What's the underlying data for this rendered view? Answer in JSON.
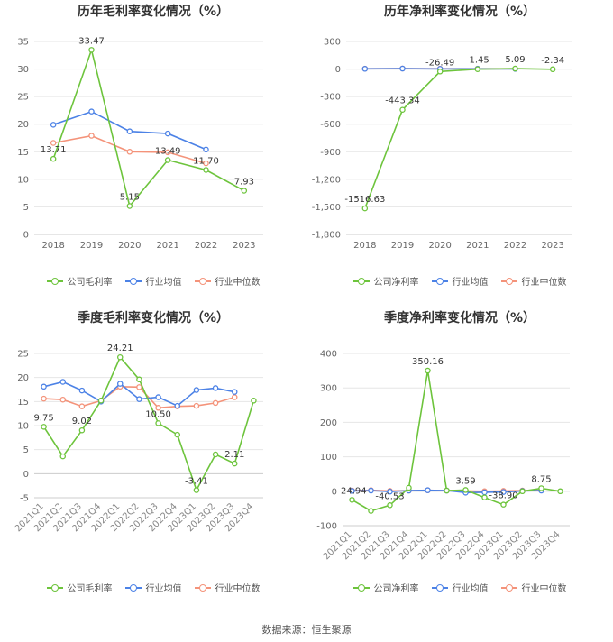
{
  "source": "数据来源：恒生聚源",
  "legend": [
    "公司毛利率",
    "行业均值",
    "行业中位数"
  ],
  "colors": {
    "company": "#6dc43c",
    "avg": "#4c82e6",
    "median": "#f4937a"
  },
  "chart_data": [
    {
      "type": "line",
      "title": "历年毛利率变化情况（%）",
      "categories": [
        "2018",
        "2019",
        "2020",
        "2021",
        "2022",
        "2023"
      ],
      "ylim": [
        0,
        35
      ],
      "yticks": [
        0,
        5,
        10,
        15,
        20,
        25,
        30,
        35
      ],
      "grid": true,
      "legend_position": "bottom",
      "series": [
        {
          "name": "公司毛利率",
          "values": [
            13.71,
            33.47,
            5.15,
            13.49,
            11.7,
            7.93
          ],
          "labels": [
            "13.71",
            "33.47",
            "5.15",
            "13.49",
            "11.70",
            "7.93"
          ]
        },
        {
          "name": "行业均值",
          "values": [
            19.9,
            22.3,
            18.7,
            18.3,
            15.4,
            null
          ]
        },
        {
          "name": "行业中位数",
          "values": [
            16.6,
            17.9,
            15.0,
            14.9,
            12.9,
            null
          ]
        }
      ]
    },
    {
      "type": "line",
      "title": "历年净利率变化情况（%）",
      "categories": [
        "2018",
        "2019",
        "2020",
        "2021",
        "2022",
        "2023"
      ],
      "ylim": [
        -1800,
        300
      ],
      "yticks": [
        -1800,
        -1500,
        -1200,
        -900,
        -600,
        -300,
        0,
        300
      ],
      "ytick_labels": [
        "-1,800",
        "-1,500",
        "-1,200",
        "-900",
        "-600",
        "-300",
        "0",
        "300"
      ],
      "grid": true,
      "legend_position": "bottom",
      "series": [
        {
          "name": "公司净利率",
          "values": [
            -1516.63,
            -443.34,
            -26.49,
            -1.45,
            5.09,
            -2.34
          ],
          "labels": [
            "-1516.63",
            "-443.34",
            "-26.49",
            "-1.45",
            "5.09",
            "-2.34"
          ]
        },
        {
          "name": "行业均值",
          "values": [
            3,
            5,
            2,
            3,
            2,
            null
          ]
        },
        {
          "name": "行业中位数",
          "values": [
            4,
            6,
            4,
            4,
            3,
            null
          ]
        }
      ]
    },
    {
      "type": "line",
      "title": "季度毛利率变化情况（%）",
      "categories": [
        "2021Q1",
        "2021Q2",
        "2021Q3",
        "2021Q4",
        "2022Q1",
        "2022Q2",
        "2022Q3",
        "2022Q4",
        "2023Q1",
        "2023Q2",
        "2023Q3",
        "2023Q4"
      ],
      "ylim": [
        -5,
        25
      ],
      "yticks": [
        -5,
        0,
        5,
        10,
        15,
        20,
        25
      ],
      "grid": true,
      "legend_position": "bottom",
      "series": [
        {
          "name": "公司毛利率",
          "values": [
            9.75,
            3.6,
            9.02,
            15.2,
            24.21,
            19.6,
            10.5,
            8.1,
            -3.41,
            4.0,
            2.11,
            15.2
          ],
          "labels": [
            "9.75",
            "",
            "9.02",
            "",
            "24.21",
            "",
            "10.50",
            "",
            "-3.41",
            "",
            "2.11",
            ""
          ]
        },
        {
          "name": "行业均值",
          "values": [
            18.1,
            19.1,
            17.3,
            15.0,
            18.7,
            15.5,
            15.9,
            14.1,
            17.4,
            17.8,
            17.0,
            null
          ]
        },
        {
          "name": "行业中位数",
          "values": [
            15.6,
            15.4,
            14.0,
            15.2,
            18.1,
            18.0,
            13.7,
            14.0,
            14.1,
            14.7,
            15.9,
            null
          ]
        }
      ]
    },
    {
      "type": "line",
      "title": "季度净利率变化情况（%）",
      "categories": [
        "2021Q1",
        "2021Q2",
        "2021Q3",
        "2021Q4",
        "2022Q1",
        "2022Q2",
        "2022Q3",
        "2022Q4",
        "2023Q1",
        "2023Q2",
        "2023Q3",
        "2023Q4"
      ],
      "ylim": [
        -100,
        400
      ],
      "yticks": [
        -100,
        0,
        100,
        200,
        300,
        400
      ],
      "grid": true,
      "legend_position": "bottom",
      "series": [
        {
          "name": "公司净利率",
          "values": [
            -24.94,
            -57,
            -40.53,
            10,
            350.16,
            2,
            3.59,
            -18,
            -38.9,
            0,
            8.75,
            0
          ],
          "labels": [
            "-24.94",
            "",
            "-40.53",
            "",
            "350.16",
            "",
            "3.59",
            "",
            "-38.90",
            "",
            "8.75",
            ""
          ]
        },
        {
          "name": "行业均值",
          "values": [
            1,
            2,
            -1,
            2,
            3,
            2,
            -4,
            -3,
            -2,
            1,
            2,
            null
          ]
        },
        {
          "name": "行业中位数",
          "values": [
            2,
            3,
            1,
            2,
            3,
            2,
            1,
            0,
            1,
            2,
            3,
            null
          ]
        }
      ]
    }
  ]
}
